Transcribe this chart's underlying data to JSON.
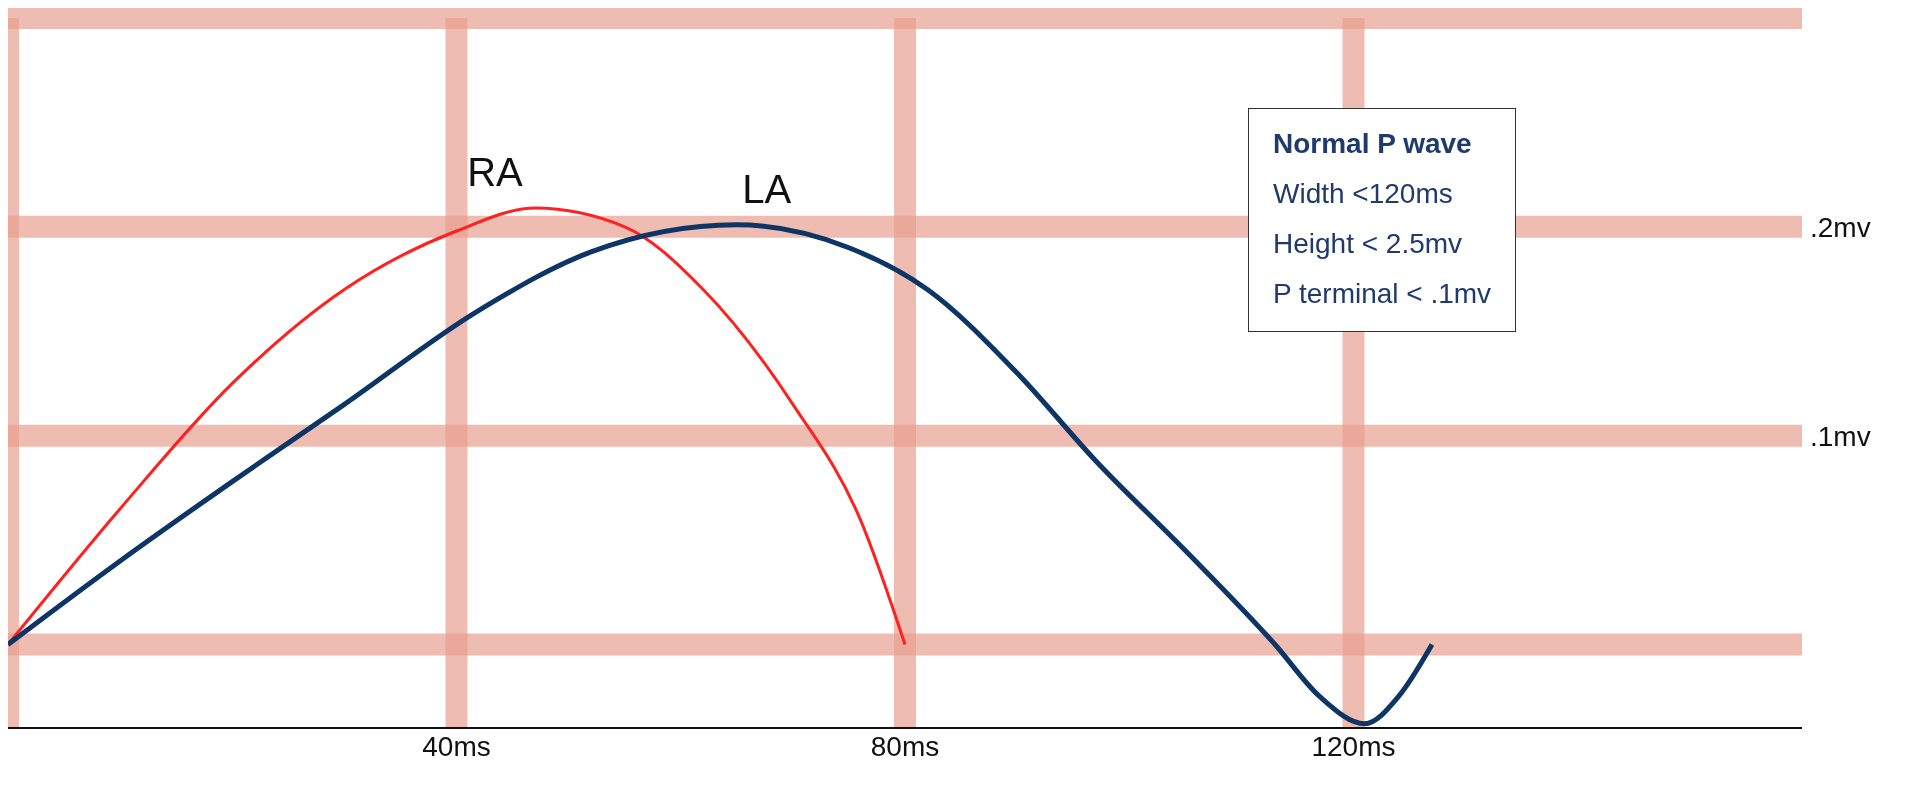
{
  "chart_data": {
    "type": "line",
    "series": [
      {
        "name": "RA",
        "color": "#ff2020",
        "x": [
          0,
          10,
          20,
          30,
          40,
          47,
          55,
          62,
          70,
          76,
          80
        ],
        "values": [
          0,
          0.065,
          0.125,
          0.17,
          0.198,
          0.209,
          0.2,
          0.17,
          0.115,
          0.06,
          0
        ]
      },
      {
        "name": "LA",
        "color": "#0d3566",
        "x": [
          0,
          10,
          20,
          30,
          42,
          52,
          65,
          75,
          82,
          90,
          97,
          105,
          113,
          117,
          121,
          124,
          127
        ],
        "values": [
          0,
          0.04,
          0.078,
          0.115,
          0.16,
          0.188,
          0.201,
          0.19,
          0.17,
          0.13,
          0.088,
          0.045,
          0,
          -0.025,
          -0.038,
          -0.025,
          0
        ]
      }
    ],
    "xlim": [
      0,
      160
    ],
    "xticks": [
      {
        "value": 0,
        "label": null
      },
      {
        "value": 40,
        "label": "40ms"
      },
      {
        "value": 80,
        "label": "80ms"
      },
      {
        "value": 120,
        "label": "120ms"
      }
    ],
    "ylim": [
      -0.04,
      0.3
    ],
    "yticks": [
      {
        "value": 0,
        "label": null
      },
      {
        "value": 0.1,
        "label": ".1mv"
      },
      {
        "value": 0.2,
        "label": ".2mv"
      },
      {
        "value": 0.3,
        "label": null
      }
    ],
    "grid": true,
    "marker": "none",
    "line_style": "solid",
    "annotations": [
      "Normal P wave",
      "Width <120ms",
      "Height < 2.5mv",
      "P terminal < .1mv"
    ]
  }
}
